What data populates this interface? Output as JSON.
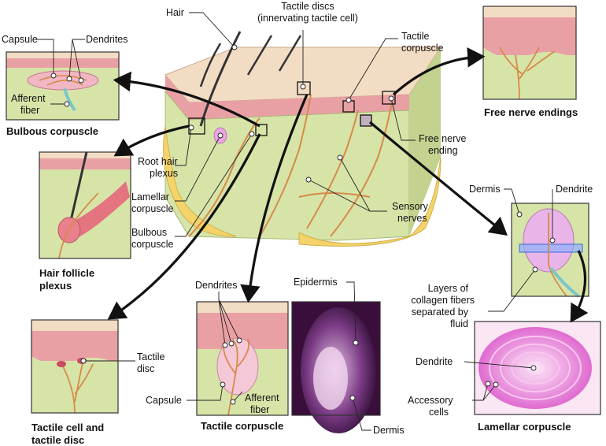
{
  "labels": {
    "hair": "Hair",
    "tactile_discs_1": "Tactile discs",
    "tactile_discs_2": "(innervating tactile cell)",
    "capsule_top": "Capsule",
    "dendrites_top": "Dendrites",
    "afferent_1": "Afferent",
    "afferent_2": "fiber",
    "tactile_corpuscle_1": "Tactile",
    "tactile_corpuscle_2": "corpuscle",
    "root_hair_1": "Root hair",
    "root_hair_2": "plexus",
    "lamellar_1": "Lamellar",
    "lamellar_2": "corpuscle",
    "bulbous_1": "Bulbous",
    "bulbous_2": "corpuscle",
    "free_nerve_1": "Free nerve",
    "free_nerve_2": "ending",
    "sensory_1": "Sensory",
    "sensory_2": "nerves",
    "dermis_right": "Dermis",
    "dendrite_right": "Dendrite",
    "layers_1": "Layers of",
    "layers_2": "collagen fibers",
    "layers_3": "separated by",
    "layers_4": "fluid",
    "dendrite_lam": "Dendrite",
    "accessory_1": "Accessory",
    "accessory_2": "cells",
    "tactile_disc_1": "Tactile",
    "tactile_disc_2": "disc",
    "dendrites_bottom": "Dendrites",
    "capsule_bottom": "Capsule",
    "afferent_b1": "Afferent",
    "afferent_b2": "fiber",
    "epidermis": "Epidermis",
    "dermis_bottom": "Dermis"
  },
  "captions": {
    "bulbous": "Bulbous corpuscle",
    "hair_follicle_1": "Hair follicle",
    "hair_follicle_2": "plexus",
    "free_nerve": "Free nerve endings",
    "tactile_cell_1": "Tactile cell and",
    "tactile_cell_2": "tactile disc",
    "tactile_corpuscle": "Tactile corpuscle",
    "lamellar": "Lamellar corpuscle"
  },
  "colors": {
    "epidermis": "#e9a0a4",
    "surface": "#f3dcc4",
    "dermis": "#d7e4a8",
    "fat": "#f3d36a",
    "nerve": "#d68a4a",
    "lamellar": "#e8a6e0",
    "histology_dark": "#3a0e3a"
  }
}
